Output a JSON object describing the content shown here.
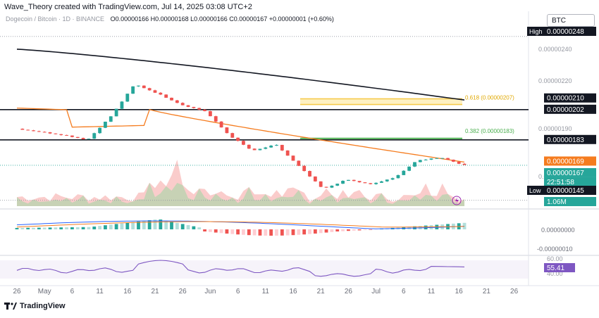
{
  "header": {
    "attribution": "Wave_Theory created with TradingView.com, Jul 14, 2025 03:08 UTC+2",
    "symbol": "Dogecoin / Bitcoin · 1D · BINANCE",
    "ohlc": "O0.00000166 H0.00000168 L0.00000166 C0.00000167 +0.00000001 (+0.60%)",
    "currency_button": "BTC"
  },
  "footer": {
    "brand": "TradingView"
  },
  "colors": {
    "up": "#26a69a",
    "down": "#ef5350",
    "ma_long": "#131722",
    "ma_mid": "#f57c1f",
    "fib_gold": "#f6c94b",
    "fib_green": "#4caf50",
    "rsi": "#7e57c2",
    "macd_line": "#2962ff"
  },
  "chart_data": {
    "type": "line",
    "panes": [
      "price",
      "volume",
      "macd",
      "rsi"
    ],
    "x_ticks": [
      "26",
      "May",
      "6",
      "11",
      "16",
      "21",
      "26",
      "Jun",
      "6",
      "11",
      "16",
      "21",
      "26",
      "Jul",
      "6",
      "11",
      "16",
      "21",
      "26"
    ],
    "price_axis_ticks": [
      "0.00000240",
      "0.00000220",
      "0.00000190",
      "0.00000160",
      "0.00000150"
    ],
    "price_labels": [
      {
        "label": "High",
        "value": "0.00000248"
      },
      {
        "label": "",
        "value": "0.00000210"
      },
      {
        "label": "",
        "value": "0.00000202"
      },
      {
        "label": "",
        "value": "0.00000183"
      },
      {
        "label": "",
        "value": "0.00000169"
      },
      {
        "label": "",
        "value": "0.00000167"
      },
      {
        "label": "",
        "value": "22:51:58"
      },
      {
        "label": "Low",
        "value": "0.00000145"
      },
      {
        "label": "",
        "value": "1.06M"
      }
    ],
    "horizontal_levels": [
      2.02e-06,
      1.83e-06
    ],
    "fib_levels": [
      {
        "label": "0.618 (0.00000207)",
        "value": 2.07e-06
      },
      {
        "label": "0.382 (0.00000183)",
        "value": 1.83e-06
      }
    ],
    "price_series": {
      "x": [
        "Apr 21",
        "Apr 26",
        "May 1",
        "May 6",
        "May 8",
        "May 11",
        "May 16",
        "May 21",
        "May 26",
        "Jun 1",
        "Jun 6",
        "Jun 11",
        "Jun 16",
        "Jun 21",
        "Jun 26",
        "Jul 1",
        "Jul 6",
        "Jul 9",
        "Jul 11",
        "Jul 14"
      ],
      "close": [
        1.9e-06,
        1.88e-06,
        1.86e-06,
        1.83e-06,
        1.98e-06,
        2.18e-06,
        2.12e-06,
        2.05e-06,
        2.01e-06,
        1.86e-06,
        1.76e-06,
        1.8e-06,
        1.66e-06,
        1.52e-06,
        1.58e-06,
        1.55e-06,
        1.59e-06,
        1.7e-06,
        1.72e-06,
        1.67e-06
      ]
    },
    "ma_long": {
      "start": 2.4e-06,
      "end": 2.08e-06
    },
    "ma_mid": {
      "start": 2.03e-06,
      "end": 1.69e-06
    },
    "macd_axis_ticks": [
      "0.00000000",
      "-0.00000010"
    ],
    "rsi_axis_ticks": [
      "60.00",
      "40.00"
    ],
    "rsi_value": "55.41",
    "ylim": [
      1.4e-06,
      2.55e-06
    ]
  }
}
